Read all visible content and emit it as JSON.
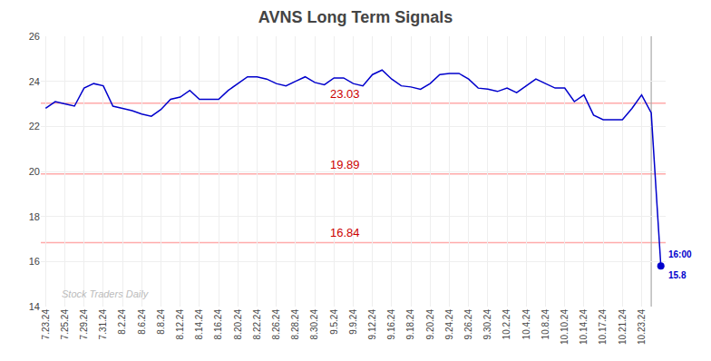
{
  "chart_data": {
    "type": "line",
    "title": "AVNS Long Term Signals",
    "categories": [
      "7.23.24",
      null,
      "7.25.24",
      null,
      "7.29.24",
      null,
      "7.31.24",
      null,
      "8.2.24",
      null,
      "8.6.24",
      null,
      "8.8.24",
      null,
      "8.12.24",
      null,
      "8.14.24",
      null,
      "8.16.24",
      null,
      "8.20.24",
      null,
      "8.22.24",
      null,
      "8.26.24",
      null,
      "8.28.24",
      null,
      "8.30.24",
      null,
      "9.5.24",
      null,
      "9.9.24",
      null,
      "9.12.24",
      null,
      "9.16.24",
      null,
      "9.18.24",
      null,
      "9.20.24",
      null,
      "9.24.24",
      null,
      "9.26.24",
      null,
      "9.30.24",
      null,
      "10.2.24",
      null,
      "10.4.24",
      null,
      "10.8.24",
      null,
      "10.10.24",
      null,
      "10.14.24",
      null,
      "10.17.24",
      null,
      "10.21.24",
      null,
      "10.23.24",
      null,
      null
    ],
    "values": [
      22.8,
      23.1,
      23.0,
      22.9,
      23.7,
      23.9,
      23.8,
      22.9,
      22.8,
      22.7,
      22.55,
      22.45,
      22.75,
      23.2,
      23.3,
      23.6,
      23.2,
      23.2,
      23.2,
      23.6,
      23.9,
      24.2,
      24.2,
      24.1,
      23.9,
      23.8,
      24.0,
      24.2,
      23.95,
      23.85,
      24.15,
      24.15,
      23.9,
      23.8,
      24.3,
      24.5,
      24.1,
      23.8,
      23.75,
      23.65,
      23.9,
      24.3,
      24.35,
      24.35,
      24.1,
      23.7,
      23.65,
      23.55,
      23.7,
      23.5,
      23.8,
      24.1,
      23.9,
      23.7,
      23.7,
      23.1,
      23.4,
      22.5,
      22.3,
      22.3,
      22.3,
      22.8,
      23.4,
      22.6,
      15.8
    ],
    "color": "#0000cc",
    "ylim": [
      14,
      26
    ],
    "yticks": [
      14,
      16,
      18,
      20,
      22,
      24,
      26
    ],
    "grid": true,
    "hlines": [
      {
        "value": 23.03,
        "label": "23.03",
        "color": "#ffaaaa",
        "label_color": "#cc0000"
      },
      {
        "value": 19.89,
        "label": "19.89",
        "color": "#ffaaaa",
        "label_color": "#cc0000"
      },
      {
        "value": 16.84,
        "label": "16.84",
        "color": "#ffaaaa",
        "label_color": "#cc0000"
      }
    ],
    "vline_color": "#aaaaaa",
    "end_labels": [
      "16:00",
      "15.8"
    ],
    "watermark": {
      "text": "Stock Traders Daily",
      "color": "#bbbbbb"
    }
  }
}
